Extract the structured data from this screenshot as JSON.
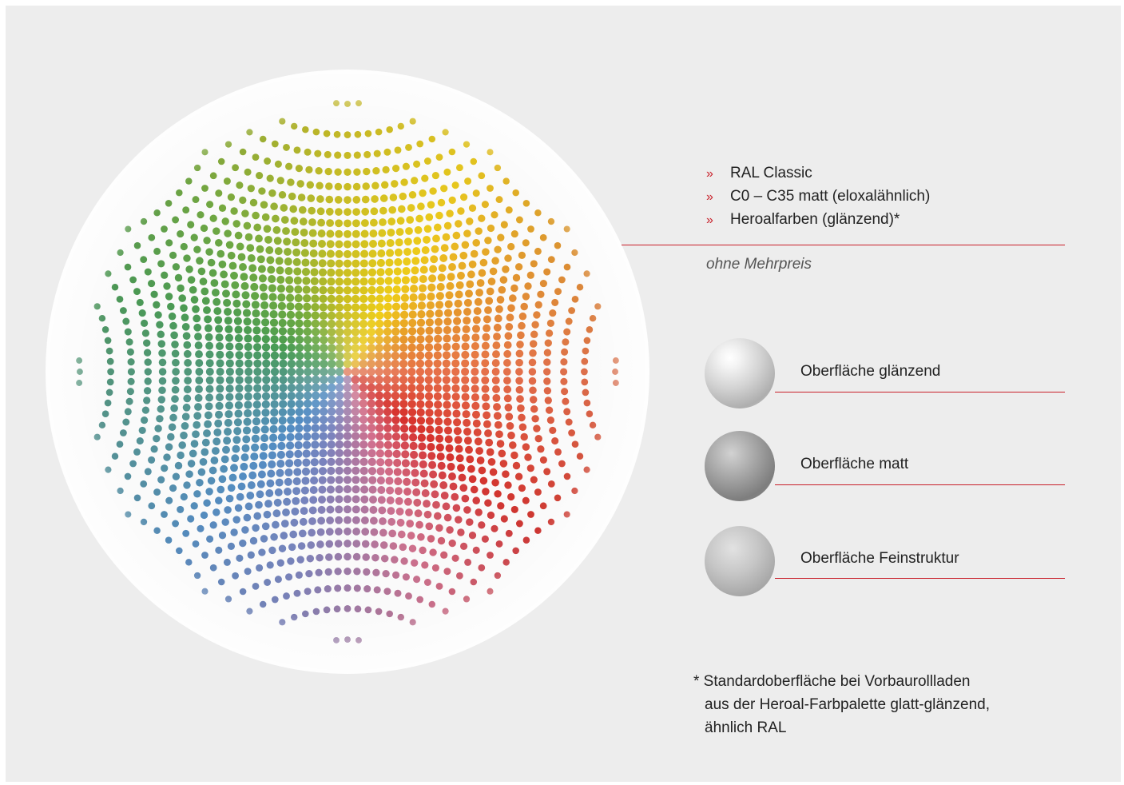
{
  "list": {
    "bullet": "»",
    "items": [
      "RAL Classic",
      "C0 – C35 matt (eloxalähnlich)",
      "Heroalfarben (glänzend)*"
    ]
  },
  "price_note": "ohne Mehrpreis",
  "surfaces": [
    {
      "label": "Oberfläche glänzend",
      "icon": "glossy-sphere"
    },
    {
      "label": "Oberfläche matt",
      "icon": "matte-sphere"
    },
    {
      "label": "Oberfläche Feinstruktur",
      "icon": "fine-texture-sphere"
    }
  ],
  "footnote": {
    "line1": "* Standardoberfläche bei Vorbaurollladen",
    "line2": "aus der Heroal-Farbpalette glatt-glänzend,",
    "line3": "ähnlich RAL"
  },
  "colors": {
    "background": "#ededed",
    "accent_red": "#c8202a",
    "text": "#222222"
  }
}
